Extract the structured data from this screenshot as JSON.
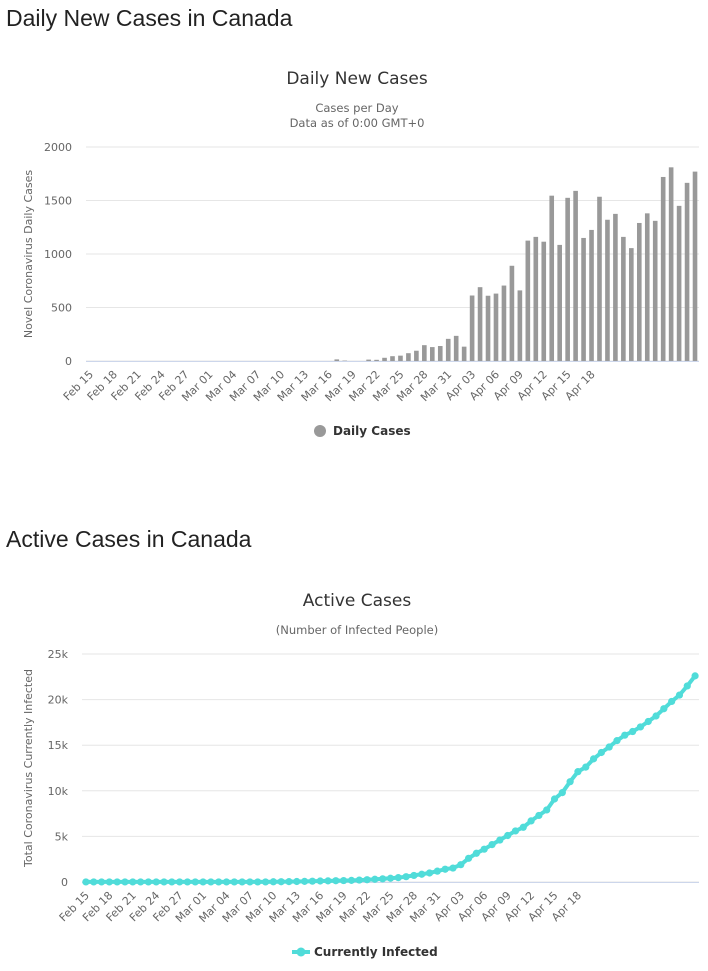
{
  "sections": [
    {
      "title": "Daily New Cases in Canada"
    },
    {
      "title": "Active Cases in Canada"
    }
  ],
  "colors": {
    "bar": "#999999",
    "line": "#50DCD9",
    "grid": "#e6e6e6",
    "axis": "#ccd6eb",
    "text": "#666666"
  },
  "chart_data": [
    {
      "type": "bar",
      "title": "Daily New Cases",
      "subtitle": [
        "Cases per Day",
        "Data as of 0:00 GMT+0"
      ],
      "ylabel": "Novel Coronavirus Daily Cases",
      "xlabel": "",
      "ylim": [
        0,
        2000
      ],
      "yticks": [
        0,
        500,
        1000,
        1500,
        2000
      ],
      "yticklabels": [
        "0",
        "500",
        "1000",
        "1500",
        "2000"
      ],
      "xticks": [
        "Feb 15",
        "Feb 18",
        "Feb 21",
        "Feb 24",
        "Feb 27",
        "Mar 01",
        "Mar 04",
        "Mar 07",
        "Mar 10",
        "Mar 13",
        "Mar 16",
        "Mar 19",
        "Mar 22",
        "Mar 25",
        "Mar 28",
        "Mar 31",
        "Apr 03",
        "Apr 06",
        "Apr 09",
        "Apr 12",
        "Apr 15",
        "Apr 18"
      ],
      "legend": "Daily Cases",
      "legend_position": "bottom-center",
      "grid": true,
      "series": [
        {
          "name": "Daily Cases",
          "values": [
            0,
            0,
            0,
            0,
            0,
            0,
            0,
            0,
            0,
            0,
            0,
            0,
            0,
            0,
            0,
            0,
            0,
            0,
            0,
            0,
            0,
            0,
            0,
            0,
            0,
            0,
            0,
            0,
            0,
            0,
            0,
            15,
            4,
            0,
            0,
            13,
            11,
            30,
            45,
            50,
            73,
            96,
            148,
            130,
            140,
            207,
            235,
            134,
            612,
            690,
            610,
            630,
            705,
            890,
            660,
            1125,
            1160,
            1115,
            1545,
            1085,
            1525,
            1590,
            1150,
            1225,
            1535,
            1320,
            1375,
            1160,
            1055,
            1290,
            1380,
            1310,
            1720,
            1810,
            1450,
            1665,
            1770
          ]
        }
      ]
    },
    {
      "type": "line",
      "title": "Active Cases",
      "subtitle": [
        "(Number of Infected People)"
      ],
      "ylabel": "Total Coronavirus Currently Infected",
      "xlabel": "",
      "ylim": [
        0,
        25000
      ],
      "yticks": [
        0,
        5000,
        10000,
        15000,
        20000,
        25000
      ],
      "yticklabels": [
        "0",
        "5k",
        "10k",
        "15k",
        "20k",
        "25k"
      ],
      "xticks": [
        "Feb 15",
        "Feb 18",
        "Feb 21",
        "Feb 24",
        "Feb 27",
        "Mar 01",
        "Mar 04",
        "Mar 07",
        "Mar 10",
        "Mar 13",
        "Mar 16",
        "Mar 19",
        "Mar 22",
        "Mar 25",
        "Mar 28",
        "Mar 31",
        "Apr 03",
        "Apr 06",
        "Apr 09",
        "Apr 12",
        "Apr 15",
        "Apr 18"
      ],
      "legend": "Currently Infected",
      "legend_position": "bottom-center",
      "grid": true,
      "series": [
        {
          "name": "Currently Infected",
          "values": [
            7,
            7,
            7,
            7,
            7,
            7,
            7,
            7,
            7,
            7,
            7,
            7,
            7,
            7,
            7,
            7,
            7,
            7,
            7,
            7,
            7,
            7,
            7,
            7,
            25,
            30,
            40,
            55,
            70,
            90,
            110,
            125,
            140,
            160,
            180,
            210,
            250,
            300,
            350,
            410,
            480,
            580,
            720,
            850,
            990,
            1190,
            1400,
            1530,
            1900,
            2600,
            3150,
            3600,
            4100,
            4600,
            5100,
            5600,
            6000,
            6700,
            7300,
            7900,
            9100,
            9800,
            11000,
            12100,
            12600,
            13500,
            14200,
            14800,
            15500,
            16100,
            16500,
            17000,
            17600,
            18200,
            19000,
            19800,
            20500,
            21500,
            22600
          ]
        }
      ]
    }
  ]
}
